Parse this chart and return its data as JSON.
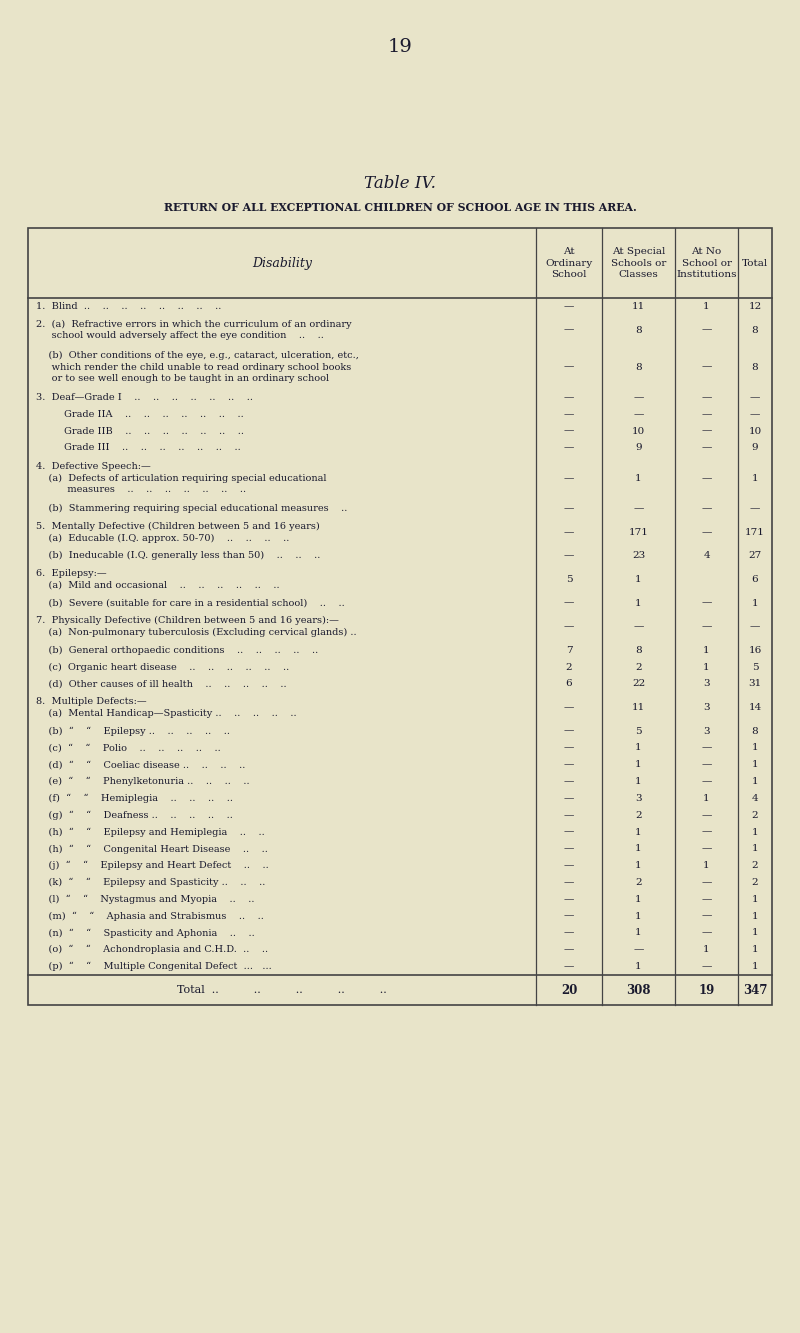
{
  "page_number": "19",
  "title": "Table IV.",
  "subtitle": "RETURN OF ALL EXCEPTIONAL CHILDREN OF SCHOOL AGE IN THIS AREA.",
  "bg_color": "#e8e4c9",
  "text_color": "#1a1a2e",
  "col_headers": [
    "Disability",
    "At\nOrdinary\nSchool",
    "At Special\nSchools or\nClasses",
    "At No\nSchool or\nInstitutions",
    "Total"
  ],
  "total_label": "Total  ..          ..          ..          ..          ..",
  "total_vals": [
    "20",
    "308",
    "19",
    "347"
  ],
  "rows": [
    {
      "label": "1.  Blind  ..    ..    ..    ..    ..    ..    ..    ..",
      "lines": 1,
      "v1": "—",
      "v2": "11",
      "v3": "1",
      "v4": "12"
    },
    {
      "label": "2.  (a)  Refractive errors in which the curriculum of an ordinary\n     school would adversely affect the eye condition    ..    ..",
      "lines": 2,
      "v1": "—",
      "v2": "8",
      "v3": "—",
      "v4": "8"
    },
    {
      "label": "    (b)  Other conditions of the eye, e.g., cataract, ulceration, etc.,\n     which render the child unable to read ordinary school books\n     or to see well enough to be taught in an ordinary school",
      "lines": 3,
      "v1": "—",
      "v2": "8",
      "v3": "—",
      "v4": "8"
    },
    {
      "label": "3.  Deaf—Grade I    ..    ..    ..    ..    ..    ..    ..",
      "lines": 1,
      "v1": "—",
      "v2": "—",
      "v3": "—",
      "v4": "—"
    },
    {
      "label": "         Grade IIA    ..    ..    ..    ..    ..    ..    ..",
      "lines": 1,
      "v1": "—",
      "v2": "—",
      "v3": "—",
      "v4": "—"
    },
    {
      "label": "         Grade IIB    ..    ..    ..    ..    ..    ..    ..",
      "lines": 1,
      "v1": "—",
      "v2": "10",
      "v3": "—",
      "v4": "10"
    },
    {
      "label": "         Grade III    ..    ..    ..    ..    ..    ..    ..",
      "lines": 1,
      "v1": "—",
      "v2": "9",
      "v3": "—",
      "v4": "9"
    },
    {
      "label": "4.  Defective Speech:—\n    (a)  Defects of articulation requiring special educational\n          measures    ..    ..    ..    ..    ..    ..    ..",
      "lines": 3,
      "v1": "—",
      "v2": "1",
      "v3": "—",
      "v4": "1"
    },
    {
      "label": "    (b)  Stammering requiring special educational measures    ..",
      "lines": 1,
      "v1": "—",
      "v2": "—",
      "v3": "—",
      "v4": "—"
    },
    {
      "label": "5.  Mentally Defective (Children between 5 and 16 years)\n    (a)  Educable (I.Q. approx. 50-70)    ..    ..    ..    ..",
      "lines": 2,
      "v1": "—",
      "v2": "171",
      "v3": "—",
      "v4": "171"
    },
    {
      "label": "    (b)  Ineducable (I.Q. generally less than 50)    ..    ..    ..",
      "lines": 1,
      "v1": "—",
      "v2": "23",
      "v3": "4",
      "v4": "27"
    },
    {
      "label": "6.  Epilepsy:—\n    (a)  Mild and occasional    ..    ..    ..    ..    ..    ..",
      "lines": 2,
      "v1": "5",
      "v2": "1",
      "v3": "",
      "v4": "6"
    },
    {
      "label": "    (b)  Severe (suitable for care in a residential school)    ..    ..",
      "lines": 1,
      "v1": "—",
      "v2": "1",
      "v3": "—",
      "v4": "1"
    },
    {
      "label": "7.  Physically Defective (Children between 5 and 16 years):—\n    (a)  Non-pulmonary tuberculosis (Excluding cervical glands) ..",
      "lines": 2,
      "v1": "—",
      "v2": "—",
      "v3": "—",
      "v4": "—"
    },
    {
      "label": "    (b)  General orthopaedic conditions    ..    ..    ..    ..    ..",
      "lines": 1,
      "v1": "7",
      "v2": "8",
      "v3": "1",
      "v4": "16"
    },
    {
      "label": "    (c)  Organic heart disease    ..    ..    ..    ..    ..    ..",
      "lines": 1,
      "v1": "2",
      "v2": "2",
      "v3": "1",
      "v4": "5"
    },
    {
      "label": "    (d)  Other causes of ill health    ..    ..    ..    ..    ..",
      "lines": 1,
      "v1": "6",
      "v2": "22",
      "v3": "3",
      "v4": "31"
    },
    {
      "label": "8.  Multiple Defects:—\n    (a)  Mental Handicap—Spasticity ..    ..    ..    ..    ..",
      "lines": 2,
      "v1": "—",
      "v2": "11",
      "v3": "3",
      "v4": "14"
    },
    {
      "label": "    (b)  “    “    Epilepsy ..    ..    ..    ..    ..",
      "lines": 1,
      "v1": "—",
      "v2": "5",
      "v3": "3",
      "v4": "8"
    },
    {
      "label": "    (c)  “    “    Polio    ..    ..    ..    ..    ..",
      "lines": 1,
      "v1": "—",
      "v2": "1",
      "v3": "—",
      "v4": "1"
    },
    {
      "label": "    (d)  “    “    Coeliac disease ..    ..    ..    ..",
      "lines": 1,
      "v1": "—",
      "v2": "1",
      "v3": "—",
      "v4": "1"
    },
    {
      "label": "    (e)  “    “    Phenylketonuria ..    ..    ..    ..",
      "lines": 1,
      "v1": "—",
      "v2": "1",
      "v3": "—",
      "v4": "1"
    },
    {
      "label": "    (f)  “    “    Hemiplegia    ..    ..    ..    ..",
      "lines": 1,
      "v1": "—",
      "v2": "3",
      "v3": "1",
      "v4": "4"
    },
    {
      "label": "    (g)  “    “    Deafness ..    ..    ..    ..    ..",
      "lines": 1,
      "v1": "—",
      "v2": "2",
      "v3": "—",
      "v4": "2"
    },
    {
      "label": "    (h)  “    “    Epilepsy and Hemiplegia    ..    ..",
      "lines": 1,
      "v1": "—",
      "v2": "1",
      "v3": "—",
      "v4": "1"
    },
    {
      "label": "    (h)  “    “    Congenital Heart Disease    ..    ..",
      "lines": 1,
      "v1": "—",
      "v2": "1",
      "v3": "—",
      "v4": "1"
    },
    {
      "label": "    (j)  “    “    Epilepsy and Heart Defect    ..    ..",
      "lines": 1,
      "v1": "—",
      "v2": "1",
      "v3": "1",
      "v4": "2"
    },
    {
      "label": "    (k)  “    “    Epilepsy and Spasticity ..    ..    ..",
      "lines": 1,
      "v1": "—",
      "v2": "2",
      "v3": "—",
      "v4": "2"
    },
    {
      "label": "    (l)  “    “    Nystagmus and Myopia    ..    ..",
      "lines": 1,
      "v1": "—",
      "v2": "1",
      "v3": "—",
      "v4": "1"
    },
    {
      "label": "    (m)  “    “    Aphasia and Strabismus    ..    ..",
      "lines": 1,
      "v1": "—",
      "v2": "1",
      "v3": "—",
      "v4": "1"
    },
    {
      "label": "    (n)  “    “    Spasticity and Aphonia    ..    ..",
      "lines": 1,
      "v1": "—",
      "v2": "1",
      "v3": "—",
      "v4": "1"
    },
    {
      "label": "    (o)  “    “    Achondroplasia and C.H.D.  ..    ..",
      "lines": 1,
      "v1": "—",
      "v2": "—",
      "v3": "1",
      "v4": "1"
    },
    {
      "label": "    (p)  “    “    Multiple Congenital Defect  ...   ...",
      "lines": 1,
      "v1": "—",
      "v2": "1",
      "v3": "—",
      "v4": "1"
    }
  ]
}
